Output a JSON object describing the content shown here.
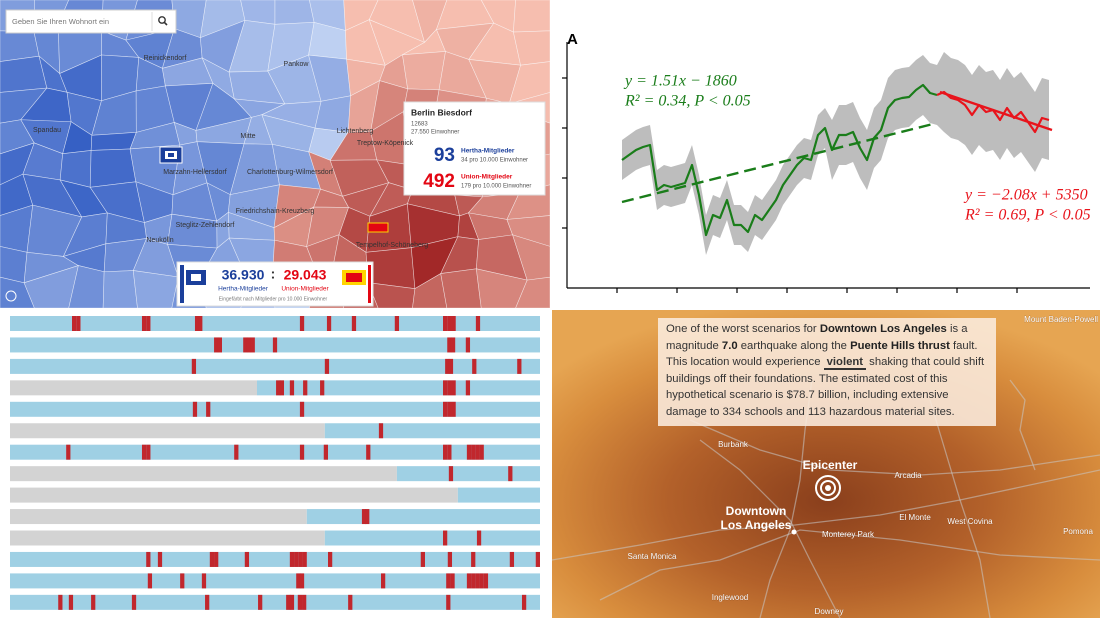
{
  "berlin_map": {
    "search_placeholder": "Geben Sie Ihren Wohnort ein",
    "districts": [
      "Reinickendorf",
      "Pankow",
      "Spandau",
      "Mitte",
      "Lichtenberg",
      "Marzahn-Hellersdorf",
      "Charlottenburg-Wilmersdorf",
      "Friedrichshain-Kreuzberg",
      "Neukölln",
      "Steglitz-Zehlendorf",
      "Tempelhof-Schöneberg",
      "Treptow-Köpenick"
    ],
    "tooltip": {
      "title": "Berlin Biesdorf",
      "zip": "12683",
      "population": "27.550 Einwohner",
      "hertha_count": "93",
      "hertha_label": "Hertha-Mitglieder",
      "hertha_rate": "34 pro 10.000 Einwohner",
      "union_count": "492",
      "union_label": "Union-Mitglieder",
      "union_rate": "179 pro 10.000 Einwohner"
    },
    "totals": {
      "hertha": "36.930",
      "separator": ":",
      "union": "29.043",
      "hertha_label": "Hertha-Mitglieder",
      "union_label": "Union-Mitglieder",
      "note": "Eingefärbt nach Mitglieder pro 10.000 Einwohner"
    }
  },
  "chart_data": {
    "type": "line",
    "panel_label": "A",
    "x": [
      5.5,
      6.2,
      6.9,
      7.6,
      8.3,
      9.0,
      9.7,
      10.4,
      11.1,
      11.8,
      12.5,
      13.2,
      13.9,
      14.6,
      15.3,
      16.0,
      16.7,
      17.4,
      18.1,
      18.8,
      19.5,
      20.2,
      20.9,
      21.6,
      22.3,
      23.0,
      23.7,
      24.4,
      25.1,
      25.8,
      26.5,
      27.2,
      27.9,
      28.6,
      29.3,
      30.0,
      30.7,
      31.4,
      32.1,
      32.8,
      33.5,
      34.2,
      34.9,
      35.6,
      36.3,
      37.0,
      37.7,
      38.4,
      39.1,
      39.8,
      40.5,
      41.2,
      41.9,
      42.6,
      43.3,
      44.0,
      44.7,
      45.4,
      46.1,
      46.8,
      47.5,
      48.2
    ],
    "xlim": [
      0,
      52.3
    ],
    "ylim": [
      0,
      24.6
    ],
    "xticks": [
      5,
      11,
      17,
      22,
      28,
      33,
      39,
      45
    ],
    "yticks": [
      6,
      11,
      16,
      21
    ],
    "band": {
      "color": "#bdbdbd",
      "lower": [
        10.8,
        11.3,
        11.8,
        12.1,
        12.3,
        7.8,
        8.3,
        8.1,
        8.3,
        8.5,
        10.3,
        7.3,
        3.3,
        5.3,
        5.0,
        6.8,
        4.3,
        4.3,
        3.6,
        5.3,
        4.8,
        5.8,
        6.8,
        8.3,
        9.3,
        10.3,
        11.0,
        10.8,
        13.3,
        14.0,
        10.8,
        12.3,
        12.3,
        12.6,
        11.0,
        9.8,
        12.0,
        12.8,
        15.0,
        15.8,
        16.0,
        16.1,
        16.8,
        17.3,
        16.5,
        16.3,
        15.6,
        15.0,
        14.8,
        14.3,
        13.3,
        14.3,
        13.6,
        13.8,
        12.8,
        14.0,
        13.0,
        13.6,
        12.6,
        11.6,
        13.0,
        12.8
      ],
      "upper": [
        14.8,
        15.3,
        15.8,
        16.1,
        16.3,
        11.8,
        12.3,
        12.1,
        12.3,
        12.5,
        14.3,
        11.3,
        7.3,
        9.3,
        9.0,
        10.8,
        8.3,
        8.3,
        7.6,
        9.3,
        8.8,
        9.8,
        10.8,
        12.3,
        13.3,
        14.3,
        15.0,
        14.8,
        17.3,
        18.0,
        16.8,
        18.3,
        18.3,
        18.6,
        17.0,
        15.8,
        18.0,
        18.8,
        21.0,
        21.8,
        22.0,
        22.1,
        22.8,
        23.3,
        22.5,
        22.3,
        23.6,
        23.0,
        22.8,
        22.3,
        21.3,
        22.3,
        21.6,
        21.8,
        20.8,
        22.0,
        21.0,
        21.6,
        20.6,
        19.6,
        21.0,
        20.8
      ]
    },
    "series": [
      {
        "color": "#1a7d1a",
        "values": [
          12.8,
          13.3,
          13.8,
          14.1,
          14.3,
          9.8,
          10.3,
          10.1,
          10.3,
          10.5,
          12.3,
          9.3,
          5.3,
          7.3,
          7.0,
          8.8,
          6.3,
          6.3,
          5.6,
          7.3,
          6.8,
          7.8,
          8.8,
          10.3,
          11.3,
          12.3,
          13.0,
          12.8,
          15.3,
          16.0,
          13.8,
          15.3,
          15.3,
          15.6,
          14.0,
          12.8,
          15.0,
          15.8,
          18.0,
          18.8,
          19.0,
          19.1,
          19.8,
          20.3,
          19.5,
          19.3,
          null,
          null,
          null,
          null,
          null,
          null,
          null,
          null,
          null,
          null,
          null,
          null,
          null,
          null,
          null,
          null
        ]
      },
      {
        "color": "#e8141c",
        "values": [
          null,
          null,
          null,
          null,
          null,
          null,
          null,
          null,
          null,
          null,
          null,
          null,
          null,
          null,
          null,
          null,
          null,
          null,
          null,
          null,
          null,
          null,
          null,
          null,
          null,
          null,
          null,
          null,
          null,
          null,
          null,
          null,
          null,
          null,
          null,
          null,
          null,
          null,
          null,
          null,
          null,
          null,
          null,
          null,
          null,
          19.3,
          19.6,
          19.0,
          18.8,
          18.3,
          17.3,
          18.3,
          17.6,
          17.8,
          16.8,
          18.0,
          17.0,
          17.6,
          16.6,
          15.6,
          17.0,
          16.8
        ]
      }
    ],
    "trend_lines": [
      {
        "color": "#1a7d1a",
        "dashed": true,
        "x": [
          5.5,
          36.6
        ],
        "values": [
          8.6,
          16.4
        ]
      },
      {
        "color": "#e8141c",
        "dashed": false,
        "x": [
          37.3,
          48.5
        ],
        "values": [
          19.6,
          15.8
        ]
      }
    ],
    "annotations": [
      {
        "color": "#1a7d1a",
        "lines": [
          "y = 1.51x − 1860",
          "R² = 0.34, P < 0.05"
        ]
      },
      {
        "color": "#e8141c",
        "lines": [
          "y = −2.08x + 5350",
          "R² = 0.69, P < 0.05"
        ]
      }
    ]
  },
  "barcode": {
    "xlim": [
      0,
      100
    ],
    "colors": {
      "before": "#d3d3d3",
      "after": "#9fd0e4",
      "event": "#c1272d"
    },
    "rows": [
      {
        "start": 0,
        "events": [
          11.7,
          12.5,
          24.9,
          25.7,
          34.9,
          35.5,
          54.7,
          59.8,
          64.5,
          72.6,
          81.7,
          82.5,
          83.3,
          87.9
        ]
      },
      {
        "start": 0,
        "events": [
          38.5,
          39.2,
          44.0,
          44.7,
          45.4,
          49.6,
          82.5,
          83.2,
          86.0
        ]
      },
      {
        "start": 0,
        "events": [
          34.3,
          59.4,
          82.1,
          82.8,
          87.2,
          95.7
        ]
      },
      {
        "start": 46.6,
        "events": [
          50.2,
          50.9,
          52.8,
          55.3,
          58.5,
          81.7,
          82.5,
          83.3,
          86.0
        ]
      },
      {
        "start": 0,
        "events": [
          34.5,
          37.0,
          54.7,
          81.7,
          82.5,
          83.3
        ]
      },
      {
        "start": 59.4,
        "events": [
          69.6
        ]
      },
      {
        "start": 0,
        "events": [
          10.6,
          24.9,
          25.7,
          42.3,
          54.7,
          59.2,
          67.2,
          81.7,
          82.5,
          86.2,
          87.0,
          87.8,
          88.6
        ]
      },
      {
        "start": 73.0,
        "events": [
          82.8,
          94.0
        ]
      },
      {
        "start": 84.5,
        "events": []
      },
      {
        "start": 56.0,
        "events": [
          66.4,
          67.0
        ]
      },
      {
        "start": 59.4,
        "events": [
          81.7,
          88.1
        ]
      },
      {
        "start": 0,
        "events": [
          25.7,
          27.9,
          37.7,
          38.5,
          44.3,
          52.8,
          53.6,
          54.4,
          55.2,
          60.0,
          77.5,
          82.6,
          87.0,
          94.3,
          99.2
        ]
      },
      {
        "start": 0,
        "events": [
          26.0,
          32.1,
          36.2,
          54.0,
          54.7,
          70.0,
          82.3,
          83.1,
          86.2,
          87.0,
          87.8,
          88.6,
          89.4
        ]
      },
      {
        "start": 0,
        "events": [
          9.1,
          11.1,
          15.3,
          23.0,
          36.8,
          46.8,
          52.1,
          52.8,
          54.3,
          55.1,
          63.8,
          82.3,
          96.6
        ]
      }
    ]
  },
  "la_map": {
    "paragraph": [
      {
        "text": "One of the worst scenarios for "
      },
      {
        "text": "Downtown Los Angeles",
        "style": "bold"
      },
      {
        "text": " is a magnitude "
      },
      {
        "text": "7.0",
        "style": "bold"
      },
      {
        "text": " earthquake along the "
      },
      {
        "text": "Puente Hills thrust",
        "style": "bold"
      },
      {
        "text": " fault. This location would experience "
      },
      {
        "text": "violent",
        "style": "highlight"
      },
      {
        "text": " shaking that could shift buildings off their foundations. The estimated cost of this hypothetical scenario is $78.7 billion, including extensive damage to 334 schools and 113 hazardous material sites."
      }
    ],
    "epicenter": "Epicenter",
    "downtown": [
      "Downtown",
      "Los Angeles"
    ],
    "places": [
      "Mount Baden-Powell",
      "Burbank",
      "Arcadia",
      "El Monte",
      "West Covina",
      "Pomona",
      "Monterey Park",
      "Santa Monica",
      "Inglewood",
      "Downey"
    ]
  }
}
